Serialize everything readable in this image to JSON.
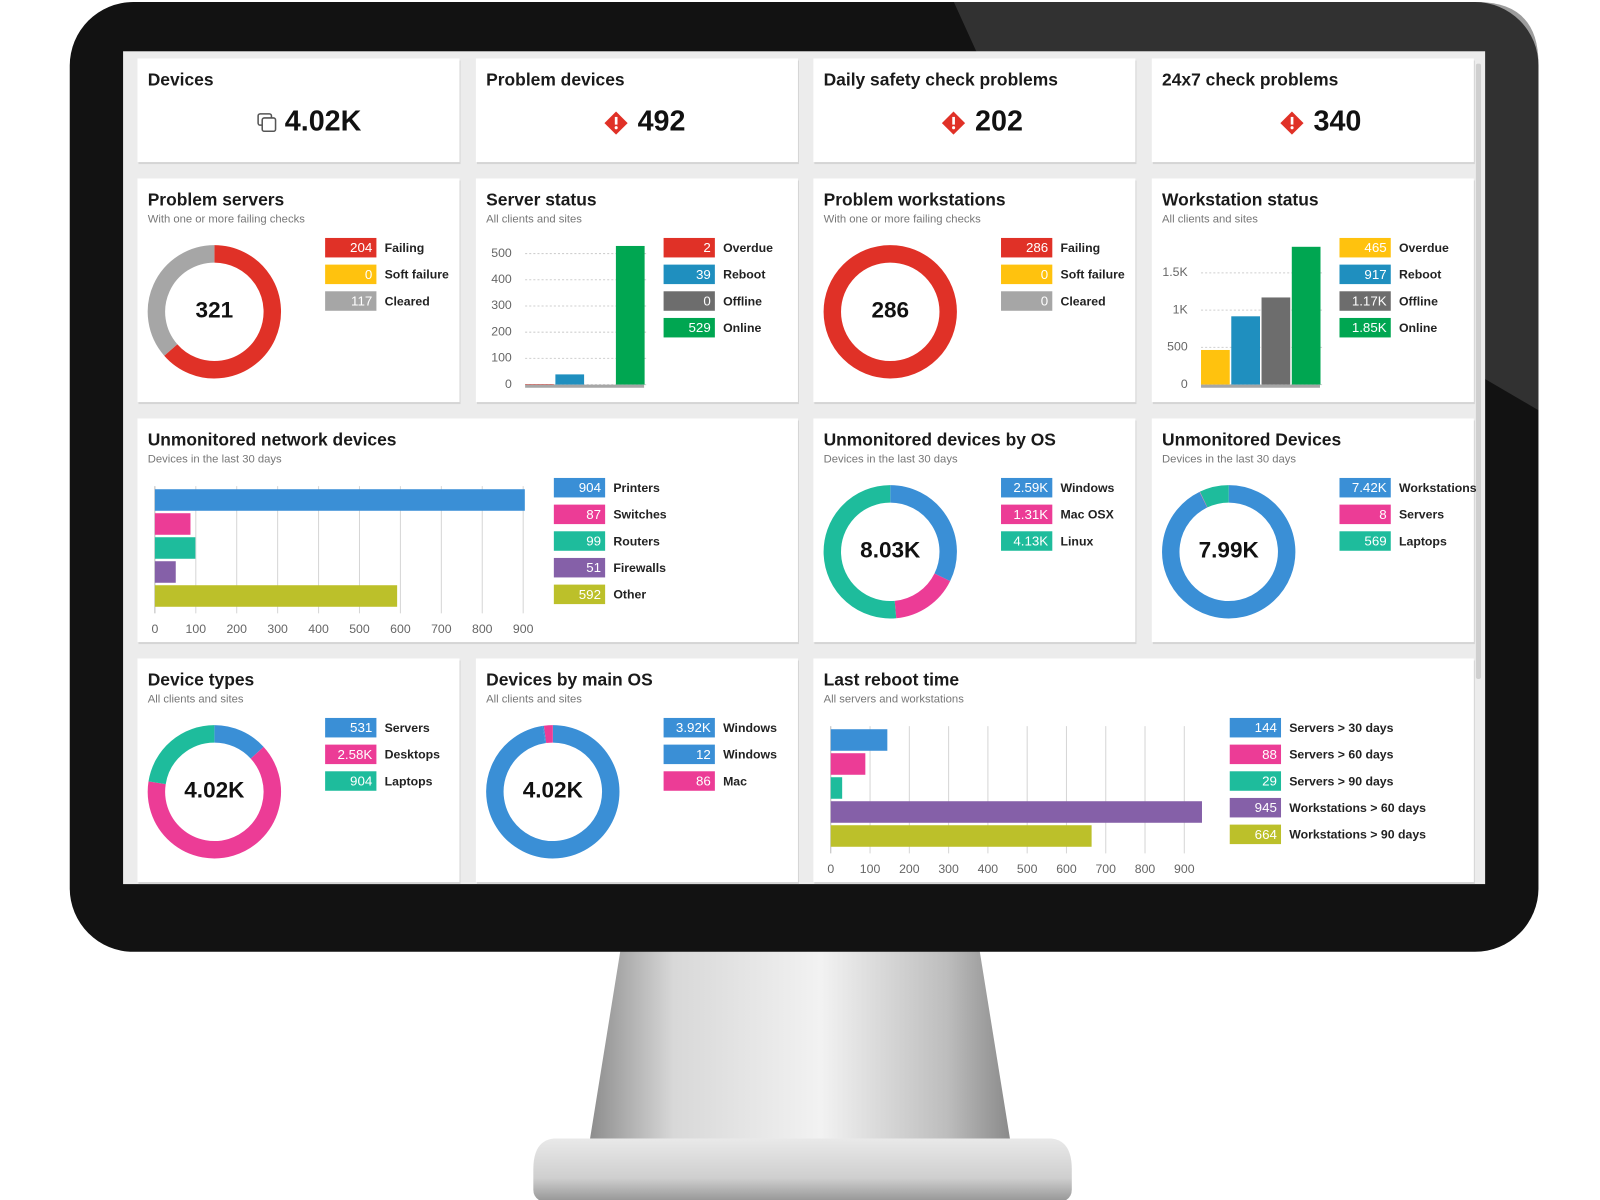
{
  "chart_data": [
    {
      "type": "stat",
      "title": "Devices",
      "value": 4020,
      "value_label": "4.02K",
      "icon": "device"
    },
    {
      "type": "stat",
      "title": "Problem devices",
      "value": 492,
      "icon": "warning"
    },
    {
      "type": "stat",
      "title": "Daily safety check problems",
      "value": 202,
      "icon": "warning"
    },
    {
      "type": "stat",
      "title": "24x7 check problems",
      "value": 340,
      "icon": "warning"
    },
    {
      "type": "donut",
      "title": "Problem servers",
      "subtitle": "With one or more failing checks",
      "center": 321,
      "categories": [
        "Failing",
        "Soft failure",
        "Cleared"
      ],
      "values": [
        204,
        0,
        117
      ],
      "colors": [
        "#e03127",
        "#ffc20e",
        "#a6a6a6"
      ]
    },
    {
      "type": "vbar",
      "title": "Server status",
      "subtitle": "All clients and sites",
      "categories": [
        "Overdue",
        "Reboot",
        "Offline",
        "Online"
      ],
      "values": [
        2,
        39,
        0,
        529
      ],
      "colors": [
        "#e03127",
        "#1f8fbf",
        "#6d6d6d",
        "#00a651"
      ],
      "ylim": [
        0,
        540
      ],
      "yticks": [
        0,
        100,
        200,
        300,
        400,
        500
      ]
    },
    {
      "type": "donut",
      "title": "Problem workstations",
      "subtitle": "With one or more failing checks",
      "center": 286,
      "categories": [
        "Failing",
        "Soft failure",
        "Cleared"
      ],
      "values": [
        286,
        0,
        0
      ],
      "colors": [
        "#e03127",
        "#ffc20e",
        "#a6a6a6"
      ]
    },
    {
      "type": "vbar",
      "title": "Workstation status",
      "subtitle": "All clients and sites",
      "categories": [
        "Overdue",
        "Reboot",
        "Offline",
        "Online"
      ],
      "values": [
        465,
        917,
        1170,
        1850
      ],
      "value_labels": [
        "465",
        "917",
        "1.17K",
        "1.85K"
      ],
      "colors": [
        "#ffc20e",
        "#1f8fbf",
        "#6d6d6d",
        "#00a651"
      ],
      "ylim": [
        0,
        1900
      ],
      "yticks": [
        0,
        500,
        {
          "value": 1000,
          "label": "1K"
        },
        {
          "value": 1500,
          "label": "1.5K"
        }
      ]
    },
    {
      "type": "hbar",
      "title": "Unmonitored network devices",
      "subtitle": "Devices in the last 30 days",
      "categories": [
        "Printers",
        "Switches",
        "Routers",
        "Firewalls",
        "Other"
      ],
      "values": [
        904,
        87,
        99,
        51,
        592
      ],
      "colors": [
        "#3a8fd6",
        "#ec3c96",
        "#1ebc9c",
        "#8560a8",
        "#bcc02a"
      ],
      "xlim": [
        0,
        900
      ],
      "xticks": [
        0,
        100,
        200,
        300,
        400,
        500,
        600,
        700,
        800,
        900
      ]
    },
    {
      "type": "donut",
      "title": "Unmonitored devices by OS",
      "subtitle": "Devices in the last 30 days",
      "center": 8030,
      "center_label": "8.03K",
      "categories": [
        "Windows",
        "Mac OSX",
        "Linux"
      ],
      "values": [
        2590,
        1310,
        4130
      ],
      "value_labels": [
        "2.59K",
        "1.31K",
        "4.13K"
      ],
      "colors": [
        "#3a8fd6",
        "#ec3c96",
        "#1ebc9c"
      ]
    },
    {
      "type": "donut",
      "title": "Unmonitored Devices",
      "subtitle": "Devices in the last 30 days",
      "center": 7990,
      "center_label": "7.99K",
      "categories": [
        "Workstations",
        "Servers",
        "Laptops"
      ],
      "values": [
        7420,
        8,
        569
      ],
      "value_labels": [
        "7.42K",
        "8",
        "569"
      ],
      "colors": [
        "#3a8fd6",
        "#ec3c96",
        "#1ebc9c"
      ]
    },
    {
      "type": "donut",
      "title": "Device types",
      "subtitle": "All clients and sites",
      "center": 4020,
      "center_label": "4.02K",
      "categories": [
        "Servers",
        "Desktops",
        "Laptops"
      ],
      "values": [
        531,
        2580,
        904
      ],
      "value_labels": [
        "531",
        "2.58K",
        "904"
      ],
      "colors": [
        "#3a8fd6",
        "#ec3c96",
        "#1ebc9c"
      ]
    },
    {
      "type": "donut",
      "title": "Devices by main OS",
      "subtitle": "All clients and sites",
      "center": 4020,
      "center_label": "4.02K",
      "categories": [
        "Windows",
        "Windows",
        "Mac"
      ],
      "values": [
        3920,
        12,
        86
      ],
      "value_labels": [
        "3.92K",
        "12",
        "86"
      ],
      "colors": [
        "#3a8fd6",
        "#3a8fd6",
        "#ec3c96"
      ]
    },
    {
      "type": "hbar",
      "title": "Last reboot time",
      "subtitle": "All servers and workstations",
      "categories": [
        "Servers > 30 days",
        "Servers > 60 days",
        "Servers > 90 days",
        "Workstations > 60 days",
        "Workstations > 90 days"
      ],
      "values": [
        144,
        88,
        29,
        945,
        664
      ],
      "colors": [
        "#3a8fd6",
        "#ec3c96",
        "#1ebc9c",
        "#8560a8",
        "#bcc02a"
      ],
      "xlim": [
        0,
        950
      ],
      "xticks": [
        0,
        100,
        200,
        300,
        400,
        500,
        600,
        700,
        800,
        900
      ]
    }
  ]
}
